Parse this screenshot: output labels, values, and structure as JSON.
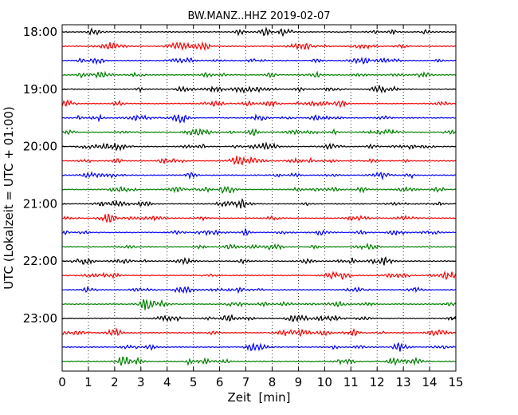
{
  "chart_data": {
    "type": "line",
    "title": "BW.MANZ..HHZ 2019-02-07",
    "xlabel": "Zeit  [min]",
    "ylabel": "UTC (Lokalzeit = UTC + 01:00)",
    "xlim": [
      0,
      15
    ],
    "x_ticks": [
      "0",
      "1",
      "2",
      "3",
      "4",
      "5",
      "6",
      "7",
      "8",
      "9",
      "10",
      "11",
      "12",
      "13",
      "14",
      "15"
    ],
    "y_ticks": [
      "18:00",
      "19:00",
      "20:00",
      "21:00",
      "22:00",
      "23:00"
    ],
    "grid": "vertical dotted lines at each minute",
    "trace_colors": [
      "#000000",
      "#ff0000",
      "#0000ff",
      "#008000"
    ],
    "trace_interval_min": 15,
    "trace_start_times": [
      "18:00",
      "18:15",
      "18:30",
      "18:45",
      "19:00",
      "19:15",
      "19:30",
      "19:45",
      "20:00",
      "20:15",
      "20:30",
      "20:45",
      "21:00",
      "21:15",
      "21:30",
      "21:45",
      "22:00",
      "22:15",
      "22:30",
      "22:45",
      "23:00",
      "23:15",
      "23:30",
      "23:45"
    ],
    "series_description": "continuous seismogram, low-amplitude noise"
  }
}
